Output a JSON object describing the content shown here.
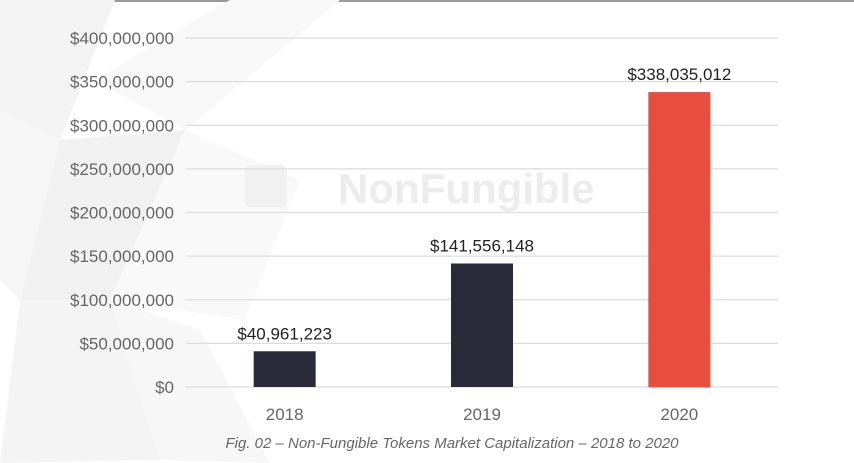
{
  "watermark": "NonFungible",
  "chart_data": {
    "type": "bar",
    "categories": [
      "2018",
      "2019",
      "2020"
    ],
    "values": [
      40961223,
      141556148,
      338035012
    ],
    "data_labels": [
      "$40,961,223",
      "$141,556,148",
      "$338,035,012"
    ],
    "colors": [
      "#2b2a3a",
      "#2b2a3a",
      "#e84e3f"
    ],
    "ylim": [
      0,
      400000000
    ],
    "yticks": [
      0,
      50000000,
      100000000,
      150000000,
      200000000,
      250000000,
      300000000,
      350000000,
      400000000
    ],
    "ytick_labels": [
      "$0",
      "$50,000,000",
      "$100,000,000",
      "$150,000,000",
      "$200,000,000",
      "$250,000,000",
      "$300,000,000",
      "$350,000,000",
      "$400,000,000"
    ],
    "grid": true,
    "title": "",
    "xlabel": "",
    "ylabel": "",
    "caption": "Fig. 02 – Non-Fungible Tokens Market Capitalization – 2018 to 2020"
  }
}
